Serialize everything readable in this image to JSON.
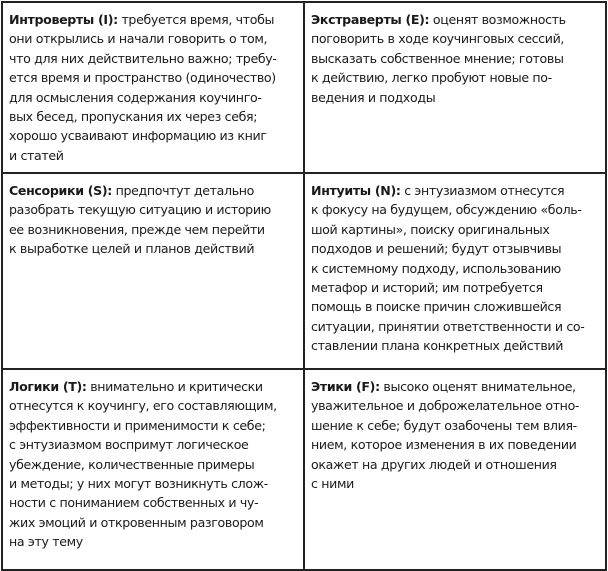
{
  "cells": [
    {
      "term": "Интроверты (I):",
      "text": " требуется время, чтобы\nони открылись и начали говорить о том,\nчто для них действительно важно; требу-\nется время и пространство (одиночество)\nдля осмысления содержания коучинго-\nвых бесед, пропускания их через себя;\nхорошо усваивают информацию из книг\nи статей"
    },
    {
      "term": "Экстраверты (E):",
      "text": " оценят возможность\nпоговорить в ходе коучинговых сессий,\nвысказать собственное мнение; готовы\nк действию, легко пробуют новые по-\nведения и подходы"
    },
    {
      "term": "Сенсорики (S):",
      "text": " предпочтут детально\nразобрать текущую ситуацию и историю\nее возникновения, прежде чем перейти\nк выработке целей и планов действий"
    },
    {
      "term": "Интуиты (N):",
      "text": " с энтузиазмом отнесутся\nк фокусу на будущем, обсуждению «боль-\nшой картины», поиску оригинальных\nподходов и решений; будут отзывчивы\nк системному подходу, использованию\nметафор и историй; им потребуется\nпомощь в поиске причин сложившейся\nситуации, принятии ответственности и со-\nставлении плана конкретных действий"
    },
    {
      "term": "Логики (T):",
      "text": " внимательно и критически\nотнесутся к коучингу, его составляющим,\nэффективности и применимости к себе;\nс энтузиазмом воспримут логическое\nубеждение, количественные примеры\nи методы; у них могут возникнуть слож-\nности с пониманием собственных и чу-\nжих эмоций и откровенным разговором\nна эту тему"
    },
    {
      "term": "Этики (F):",
      "text": " высоко оценят внимательное,\nуважительное и доброжелательное отно-\nшение к себе; будут озабочены тем влия-\nнием, которое изменения в их поведении\nокажет на других людей и отношения\nс ними"
    }
  ]
}
